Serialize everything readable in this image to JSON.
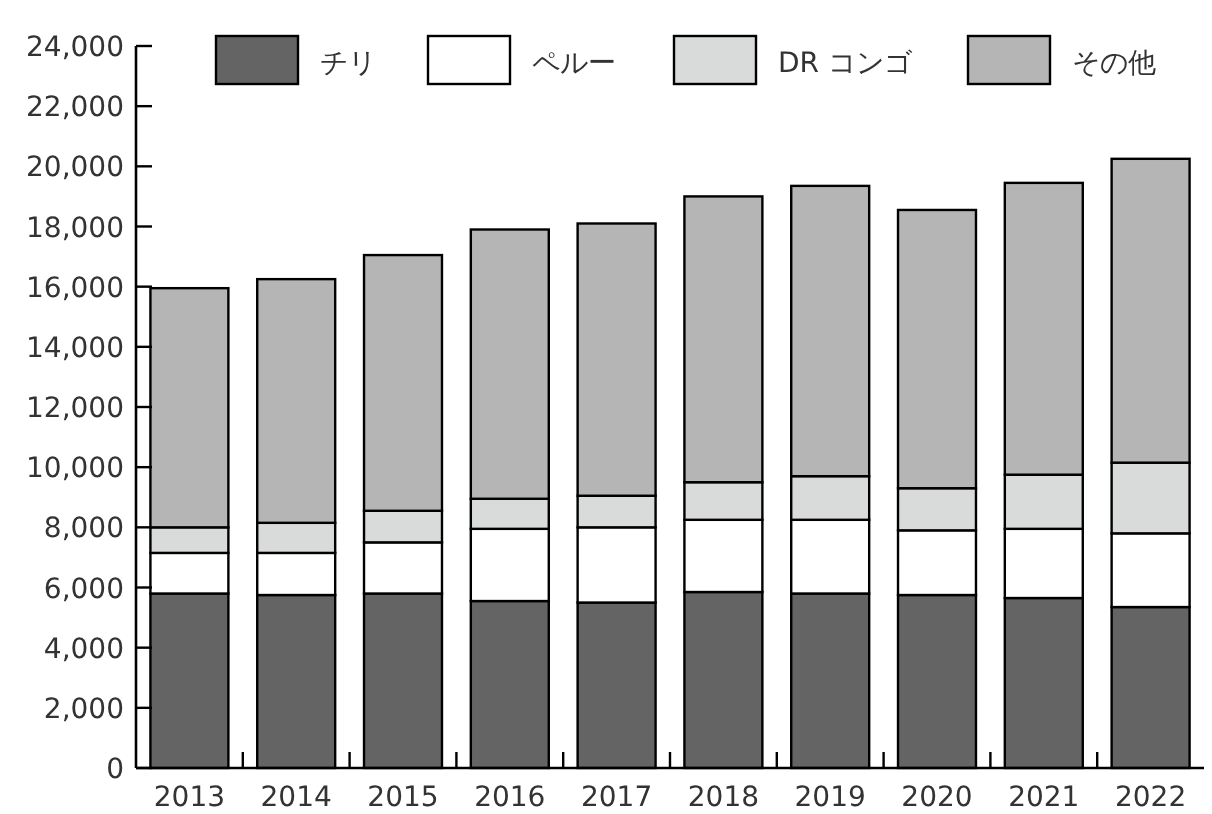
{
  "chart_data": {
    "type": "bar",
    "stacked": true,
    "categories": [
      "2013",
      "2014",
      "2015",
      "2016",
      "2017",
      "2018",
      "2019",
      "2020",
      "2021",
      "2022"
    ],
    "series": [
      {
        "name": "チリ",
        "color": "#646464",
        "values": [
          5800,
          5750,
          5800,
          5550,
          5500,
          5850,
          5800,
          5750,
          5650,
          5350
        ]
      },
      {
        "name": "ペルー",
        "color": "#ffffff",
        "values": [
          1350,
          1400,
          1700,
          2400,
          2500,
          2400,
          2450,
          2150,
          2300,
          2450
        ]
      },
      {
        "name": "DR コンゴ",
        "color": "#d9dbda",
        "values": [
          850,
          1000,
          1050,
          1000,
          1050,
          1250,
          1450,
          1400,
          1800,
          2350
        ]
      },
      {
        "name": "その他",
        "color": "#b4b5b4",
        "values": [
          7950,
          8100,
          8500,
          8950,
          9050,
          9500,
          9650,
          9250,
          9700,
          10100
        ]
      }
    ],
    "ylim": [
      0,
      24000
    ],
    "yticks": [
      0,
      {
        "value": 2000,
        "label": "2,000"
      },
      {
        "value": 4000,
        "label": "4,000"
      },
      {
        "value": 6000,
        "label": "6,000"
      },
      {
        "value": 8000,
        "label": "8,000"
      },
      {
        "value": 10000,
        "label": "10,000"
      },
      {
        "value": 12000,
        "label": "12,000"
      },
      {
        "value": 14000,
        "label": "14,000"
      },
      {
        "value": 16000,
        "label": "16,000"
      },
      {
        "value": 18000,
        "label": "18,000"
      },
      {
        "value": 20000,
        "label": "20,000"
      },
      {
        "value": 22000,
        "label": "22,000"
      },
      {
        "value": 24000,
        "label": "24,000"
      }
    ],
    "legend": "top",
    "grid": false
  }
}
